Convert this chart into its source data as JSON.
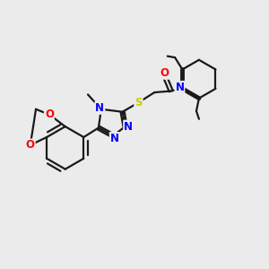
{
  "bg_color": "#ebebeb",
  "bond_color": "#1a1a1a",
  "N_color": "#0000ff",
  "O_color": "#ff0000",
  "S_color": "#cccc00",
  "line_width": 1.6,
  "font_size": 8.5,
  "fig_size": [
    3.0,
    3.0
  ],
  "dpi": 100,
  "xlim": [
    0,
    10
  ],
  "ylim": [
    0,
    10
  ]
}
